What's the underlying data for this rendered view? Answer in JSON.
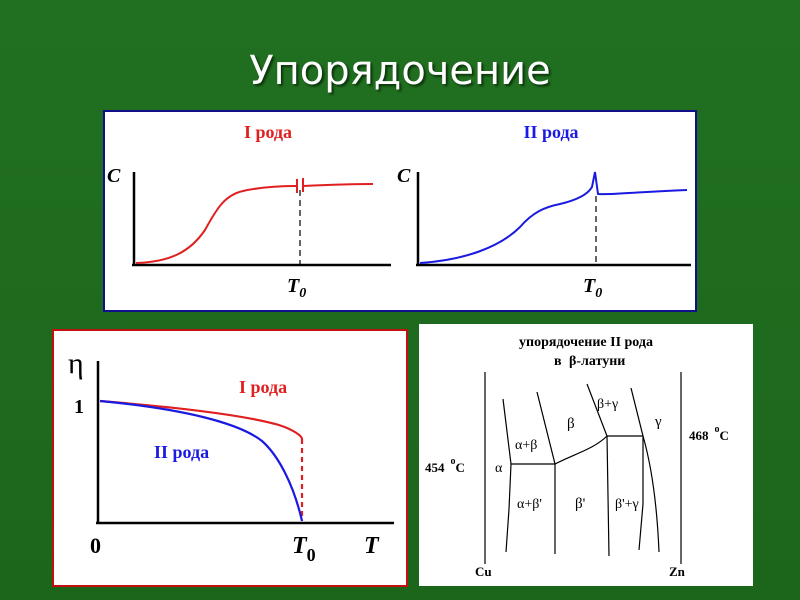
{
  "slide": {
    "title": "Упорядочение"
  },
  "top_panel": {
    "first_order": {
      "title": "I рода",
      "y_label": "C",
      "x_marker": "T",
      "x_marker_sub": "0",
      "color": "#e02020"
    },
    "second_order": {
      "title": "II рода",
      "y_label": "C",
      "x_marker": "T",
      "x_marker_sub": "0",
      "color": "#1a1ae0"
    }
  },
  "order_parameter_panel": {
    "y_label": "η",
    "y_tick": "1",
    "origin_label": "0",
    "x_marker": "T",
    "x_marker_sub": "0",
    "x_label": "T",
    "series": [
      {
        "name": "I рода",
        "color": "#e02020"
      },
      {
        "name": "II рода",
        "color": "#1a1ae0"
      }
    ]
  },
  "phase_diagram": {
    "title_line1": "упорядочение II рода",
    "title_line2_prefix": "в",
    "title_line2_main": "β-латуни",
    "left_temp": {
      "value": "454",
      "unit": "C",
      "degree": "o"
    },
    "right_temp": {
      "value": "468",
      "unit": "C",
      "degree": "o"
    },
    "x_left": "Cu",
    "x_right": "Zn",
    "regions": {
      "alpha": "α",
      "alpha_beta": "α+β",
      "beta": "β",
      "beta_gamma": "β+γ",
      "gamma": "γ",
      "alpha_beta_prime": "α+β'",
      "beta_prime": "β'",
      "beta_prime_gamma": "β'+γ"
    }
  }
}
